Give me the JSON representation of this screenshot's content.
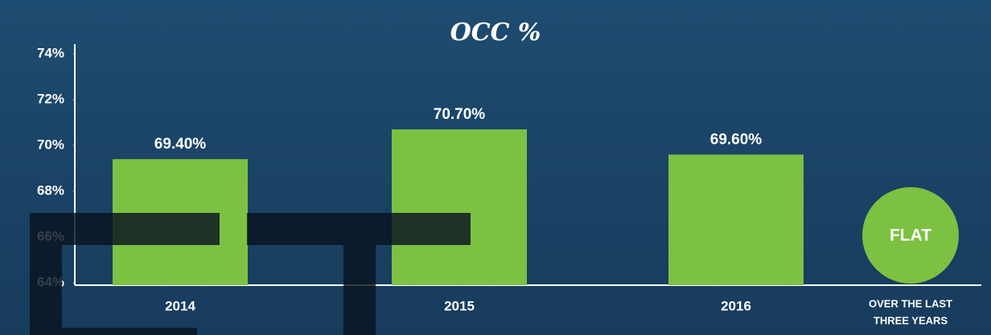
{
  "chart_data": {
    "type": "bar",
    "title": "OCC %",
    "categories": [
      "2014",
      "2015",
      "2016"
    ],
    "values": [
      69.4,
      70.7,
      69.6
    ],
    "value_labels": [
      "69.40%",
      "70.70%",
      "69.60%"
    ],
    "color": "#7cc142",
    "ylim": [
      64,
      74
    ],
    "yticks": [
      {
        "value": 64,
        "label": "64%"
      },
      {
        "value": 66,
        "label": "66%"
      },
      {
        "value": 68,
        "label": "68%"
      },
      {
        "value": 70,
        "label": "70%"
      },
      {
        "value": 72,
        "label": "72%"
      },
      {
        "value": 74,
        "label": "74%"
      }
    ],
    "grid": false,
    "annotation": {
      "badge": "FLAT",
      "lines": [
        "OVER THE LAST",
        "THREE YEARS"
      ]
    }
  }
}
